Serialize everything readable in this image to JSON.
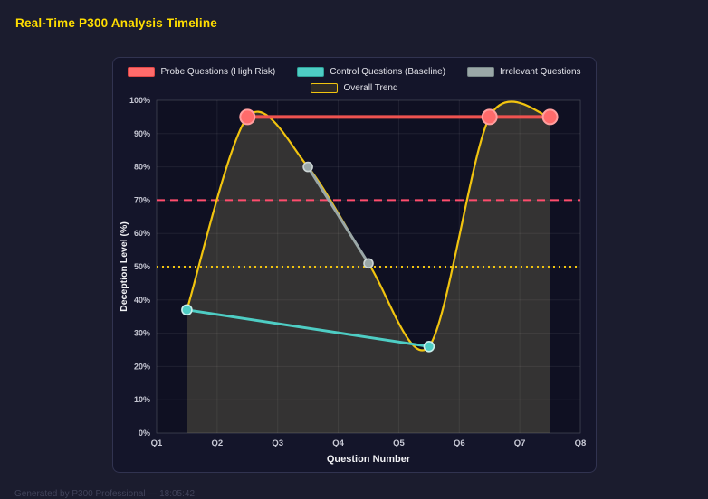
{
  "page": {
    "title": "Real-Time P300 Analysis Timeline",
    "footer": "Generated by P300 Professional — 18:05:42"
  },
  "colors": {
    "background": "#1b1c2e",
    "panel": "#14152a",
    "plot_background": "#0f1022",
    "title": "#ffdd00",
    "probe": "#ff6b6b",
    "control": "#4ecdc4",
    "irrelevant": "#9aa7a7",
    "trend": "#f1c40f",
    "threshold_high": "#ff4d6d",
    "threshold_mid": "#f1c40f"
  },
  "chart_data": {
    "type": "line",
    "title": "Real-Time P300 Analysis Timeline",
    "xlabel": "Question Number",
    "ylabel": "Deception Level (%)",
    "x_range": [
      1,
      8
    ],
    "ylim": [
      0,
      100
    ],
    "grid": true,
    "legend_position": "top",
    "x_ticks": [
      {
        "value": 1,
        "label": "Q1"
      },
      {
        "value": 2,
        "label": "Q2"
      },
      {
        "value": 3,
        "label": "Q3"
      },
      {
        "value": 4,
        "label": "Q4"
      },
      {
        "value": 5,
        "label": "Q5"
      },
      {
        "value": 6,
        "label": "Q6"
      },
      {
        "value": 7,
        "label": "Q7"
      },
      {
        "value": 8,
        "label": "Q8"
      }
    ],
    "y_ticks": [
      {
        "value": 0,
        "label": "0%"
      },
      {
        "value": 10,
        "label": "10%"
      },
      {
        "value": 20,
        "label": "20%"
      },
      {
        "value": 30,
        "label": "30%"
      },
      {
        "value": 40,
        "label": "40%"
      },
      {
        "value": 50,
        "label": "50%"
      },
      {
        "value": 60,
        "label": "60%"
      },
      {
        "value": 70,
        "label": "70%"
      },
      {
        "value": 80,
        "label": "80%"
      },
      {
        "value": 90,
        "label": "90%"
      },
      {
        "value": 100,
        "label": "100%"
      }
    ],
    "legend": [
      {
        "id": "probe",
        "label": "Probe Questions (High Risk)",
        "row": 1,
        "fill": "#ff6b6b",
        "border": "#e04848"
      },
      {
        "id": "control",
        "label": "Control Questions (Baseline)",
        "row": 1,
        "fill": "#4ecdc4",
        "border": "#2fa198"
      },
      {
        "id": "irrelevant",
        "label": "Irrelevant Questions",
        "row": 1,
        "fill": "#9aa7a7",
        "border": "#788787"
      },
      {
        "id": "trend",
        "label": "Overall Trend",
        "row": 2,
        "fill": "rgba(241,196,15,0.12)",
        "border": "#f1c40f"
      }
    ],
    "series": [
      {
        "id": "trend",
        "name": "Overall Trend",
        "type": "spline",
        "color": "#f1c40f",
        "line_width": 2.2,
        "point_radius": 0,
        "area_fill": "rgba(236,224,135,0.17)",
        "points": [
          {
            "x": 1.5,
            "y": 37
          },
          {
            "x": 2.5,
            "y": 95
          },
          {
            "x": 3.5,
            "y": 80
          },
          {
            "x": 4.5,
            "y": 51
          },
          {
            "x": 5.5,
            "y": 26
          },
          {
            "x": 6.5,
            "y": 95
          },
          {
            "x": 7.5,
            "y": 95
          }
        ]
      },
      {
        "id": "irrelevant",
        "name": "Irrelevant Questions",
        "type": "line",
        "color": "#9aa7a7",
        "line_width": 3,
        "point_radius": 5,
        "point_fill": "#9aa7a7",
        "point_stroke": "#ccd5d5",
        "points": [
          {
            "x": 3.5,
            "y": 80
          },
          {
            "x": 4.5,
            "y": 51
          }
        ]
      },
      {
        "id": "control",
        "name": "Control Questions (Baseline)",
        "type": "line",
        "color": "#4ecdc4",
        "line_width": 3,
        "point_radius": 5.5,
        "point_fill": "#4ecdc4",
        "point_stroke": "#c9efec",
        "points": [
          {
            "x": 1.5,
            "y": 37
          },
          {
            "x": 5.5,
            "y": 26
          }
        ]
      },
      {
        "id": "probe",
        "name": "Probe Questions (High Risk)",
        "type": "line",
        "color": "#ef5350",
        "line_width": 4,
        "point_radius": 8,
        "point_fill": "#ff6b6b",
        "point_stroke": "#ff9e9e",
        "points": [
          {
            "x": 2.5,
            "y": 95
          },
          {
            "x": 6.5,
            "y": 95
          },
          {
            "x": 7.5,
            "y": 95
          }
        ]
      }
    ],
    "thresholds": [
      {
        "value": 70,
        "color": "#ff4d6d",
        "style": "dashed"
      },
      {
        "value": 50,
        "color": "#f1c40f",
        "style": "dotted"
      }
    ]
  }
}
